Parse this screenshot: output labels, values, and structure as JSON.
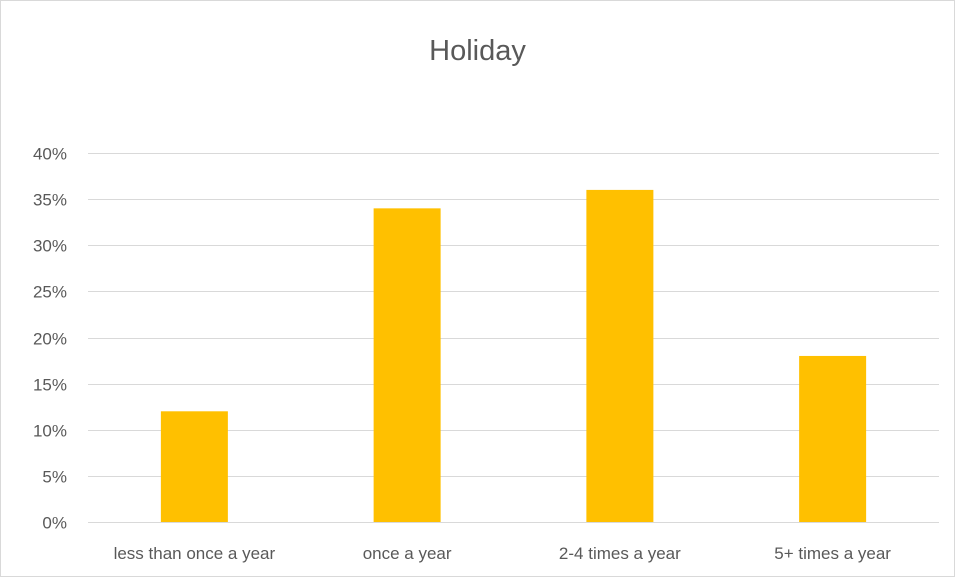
{
  "chart_data": {
    "type": "bar",
    "title": "Holiday",
    "categories": [
      "less than once a year",
      "once a year",
      "2-4 times a year",
      "5+ times a year"
    ],
    "values": [
      0.12,
      0.34,
      0.36,
      0.18
    ],
    "ylim": [
      0,
      0.4
    ],
    "yticks": [
      0,
      0.05,
      0.1,
      0.15,
      0.2,
      0.25,
      0.3,
      0.35,
      0.4
    ],
    "ytick_labels": [
      "0%",
      "5%",
      "10%",
      "15%",
      "20%",
      "25%",
      "30%",
      "35%",
      "40%"
    ],
    "xlabel": "",
    "ylabel": "",
    "grid": true,
    "legend": "none",
    "bar_color": "#ffc000",
    "grid_color": "#d9d9d9"
  }
}
